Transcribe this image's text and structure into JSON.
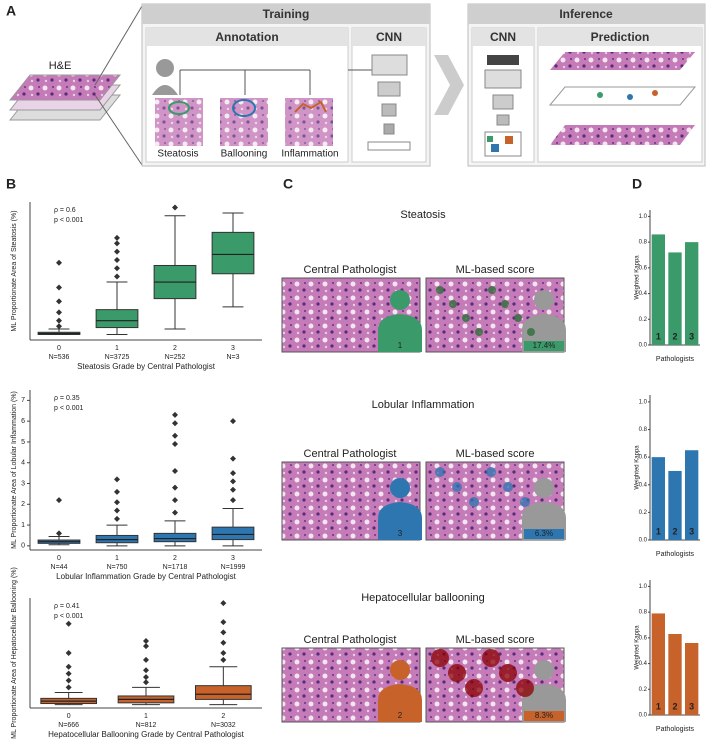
{
  "panel_a": {
    "label": "A",
    "he": "H&E",
    "training": "Training",
    "annotation": "Annotation",
    "cnn": "CNN",
    "classes": [
      "Steatosis",
      "Ballooning",
      "Inflammation"
    ],
    "inference": "Inference",
    "cnn_inference": "CNN",
    "prediction": "Prediction"
  },
  "panel_labels": {
    "b": "B",
    "c": "C",
    "d": "D"
  },
  "panel_c": [
    {
      "title": "Steatosis",
      "left": "Central Pathologist",
      "right": "ML-based score",
      "grade": "1",
      "score": "17.4%"
    },
    {
      "title": "Lobular Inflammation",
      "left": "Central Pathologist",
      "right": "ML-based score",
      "grade": "3",
      "score": "6.3%"
    },
    {
      "title": "Hepatocellular ballooning",
      "left": "Central Pathologist",
      "right": "ML-based score",
      "grade": "2",
      "score": "8.3%"
    }
  ],
  "chart_data": [
    {
      "type": "box",
      "ylabel": "ML Proportionate Area of Steatosis (%)",
      "xlabel": "Steatosis Grade by Central Pathologist",
      "annotations": [
        "ρ = 0.6",
        "p < 0.001"
      ],
      "color": "#3a9a6a",
      "ylim": [
        -2,
        48
      ],
      "categories": [
        "0",
        "1",
        "2",
        "3"
      ],
      "counts": [
        "N=536",
        "N=3725",
        "N=252",
        "N=3"
      ],
      "boxes": [
        {
          "whislo": 0,
          "q1": 0,
          "med": 0.3,
          "q3": 0.8,
          "whishi": 2,
          "fliers": [
            3,
            5,
            8,
            12,
            17,
            26
          ]
        },
        {
          "whislo": 0,
          "q1": 2.5,
          "med": 5,
          "q3": 9,
          "whishi": 19,
          "fliers": [
            21,
            24,
            27,
            30,
            33,
            35
          ]
        },
        {
          "whislo": 2,
          "q1": 13,
          "med": 19,
          "q3": 25,
          "whishi": 43,
          "fliers": [
            46
          ]
        },
        {
          "whislo": 10,
          "q1": 22,
          "med": 29,
          "q3": 37,
          "whishi": 44,
          "fliers": []
        }
      ]
    },
    {
      "type": "box",
      "ylabel": "ML Proportionate Area of Lobular Inflammation (%)",
      "xlabel": "Lobular Inflammation Grade by Central Pathologist",
      "annotations": [
        "ρ = 0.35",
        "p < 0.001"
      ],
      "color": "#2e76b0",
      "ylim": [
        -0.2,
        7.5
      ],
      "yticks": [
        0,
        1,
        2,
        3,
        4,
        5,
        6,
        7
      ],
      "categories": [
        "0",
        "1",
        "2",
        "3"
      ],
      "counts": [
        "N=44",
        "N=750",
        "N=1718",
        "N=1999"
      ],
      "boxes": [
        {
          "whislo": 0.05,
          "q1": 0.12,
          "med": 0.2,
          "q3": 0.28,
          "whishi": 0.45,
          "fliers": [
            0.6,
            2.2
          ]
        },
        {
          "whislo": 0,
          "q1": 0.15,
          "med": 0.3,
          "q3": 0.5,
          "whishi": 1.0,
          "fliers": [
            1.3,
            1.7,
            2.1,
            2.6,
            3.2
          ]
        },
        {
          "whislo": 0,
          "q1": 0.2,
          "med": 0.35,
          "q3": 0.6,
          "whishi": 1.2,
          "fliers": [
            1.6,
            2.2,
            2.8,
            3.6,
            4.9,
            5.3,
            5.9,
            6.3
          ]
        },
        {
          "whislo": 0,
          "q1": 0.3,
          "med": 0.55,
          "q3": 0.9,
          "whishi": 1.8,
          "fliers": [
            2.2,
            2.7,
            3.1,
            3.5,
            4.2,
            6.0
          ]
        }
      ]
    },
    {
      "type": "box",
      "ylabel": "ML Proportionate Area of Hepatocellular Ballooning (%)",
      "xlabel": "Hepatocellular Ballooning Grade by Central Pathologist",
      "annotations": [
        "ρ = 0.41",
        "p < 0.001"
      ],
      "color": "#c8622b",
      "ylim": [
        -1,
        31
      ],
      "categories": [
        "0",
        "1",
        "2"
      ],
      "counts": [
        "N=666",
        "N=812",
        "N=3032"
      ],
      "boxes": [
        {
          "whislo": 0,
          "q1": 0.3,
          "med": 1,
          "q3": 1.8,
          "whishi": 3.5,
          "fliers": [
            5,
            7,
            9,
            11,
            15,
            23.5
          ]
        },
        {
          "whislo": 0,
          "q1": 0.5,
          "med": 1.5,
          "q3": 2.5,
          "whishi": 5,
          "fliers": [
            6.5,
            8,
            10,
            13,
            17,
            18.5
          ]
        },
        {
          "whislo": 0,
          "q1": 1.5,
          "med": 3,
          "q3": 5.5,
          "whishi": 11,
          "fliers": [
            13,
            15,
            18,
            21,
            24,
            29.5
          ]
        }
      ]
    },
    {
      "type": "bar",
      "ylabel": "Weighted Kappa",
      "xlabel": "Pathologists",
      "color": "#3a9a6a",
      "categories": [
        "1",
        "2",
        "3"
      ],
      "values": [
        0.86,
        0.72,
        0.8
      ],
      "ylim": [
        0,
        1.05
      ],
      "yticks": [
        {
          "value": 0,
          "label": "0.0"
        },
        {
          "value": 0.2,
          "label": "0.2"
        },
        {
          "value": 0.4,
          "label": "0.4"
        },
        {
          "value": 0.6,
          "label": "0.6"
        },
        {
          "value": 0.8,
          "label": "0.8"
        },
        {
          "value": 1,
          "label": "1.0"
        }
      ]
    },
    {
      "type": "bar",
      "ylabel": "Weighted Kappa",
      "xlabel": "Pathologists",
      "color": "#2e76b0",
      "categories": [
        "1",
        "2",
        "3"
      ],
      "values": [
        0.6,
        0.5,
        0.65
      ],
      "ylim": [
        0,
        1.05
      ],
      "yticks": [
        {
          "value": 0,
          "label": "0.0"
        },
        {
          "value": 0.2,
          "label": "0.2"
        },
        {
          "value": 0.4,
          "label": "0.4"
        },
        {
          "value": 0.6,
          "label": "0.6"
        },
        {
          "value": 0.8,
          "label": "0.8"
        },
        {
          "value": 1,
          "label": "1.0"
        }
      ]
    },
    {
      "type": "bar",
      "ylabel": "Weighted Kappa",
      "xlabel": "Pathologists",
      "color": "#c8622b",
      "categories": [
        "1",
        "2",
        "3"
      ],
      "values": [
        0.79,
        0.63,
        0.56
      ],
      "ylim": [
        0,
        1.05
      ],
      "yticks": [
        {
          "value": 0,
          "label": "0.0"
        },
        {
          "value": 0.2,
          "label": "0.2"
        },
        {
          "value": 0.4,
          "label": "0.4"
        },
        {
          "value": 0.6,
          "label": "0.6"
        },
        {
          "value": 0.8,
          "label": "0.8"
        },
        {
          "value": 1,
          "label": "1.0"
        }
      ]
    }
  ]
}
